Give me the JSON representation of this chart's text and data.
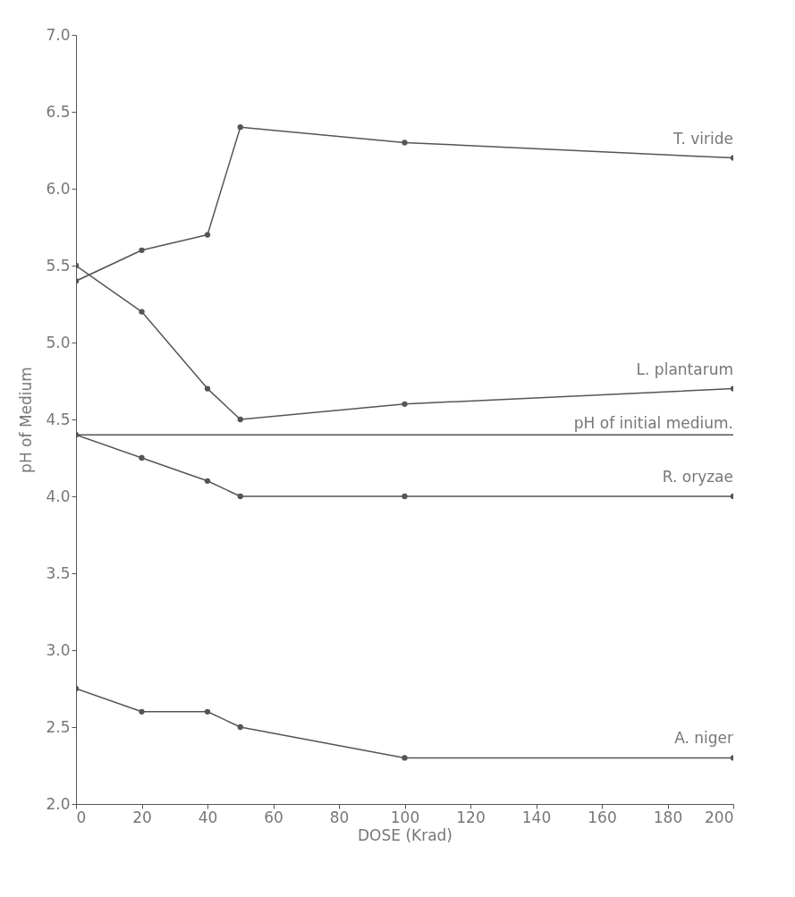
{
  "chart_data": {
    "type": "line",
    "xlabel": "DOSE (Krad)",
    "ylabel": "pH of Medium",
    "x": [
      0,
      20,
      40,
      50,
      100,
      200
    ],
    "series": [
      {
        "name": "T. viride",
        "color": "#555555",
        "values": [
          5.4,
          5.6,
          5.7,
          6.4,
          6.3,
          6.2
        ]
      },
      {
        "name": "L. plantarum",
        "color": "#555555",
        "values": [
          5.5,
          5.2,
          4.7,
          4.5,
          4.6,
          4.7
        ]
      },
      {
        "name": "R. oryzae",
        "color": "#555555",
        "values": [
          4.4,
          4.25,
          4.1,
          4.0,
          4.0,
          4.0
        ]
      },
      {
        "name": "A. niger",
        "color": "#555555",
        "values": [
          2.75,
          2.6,
          2.6,
          2.5,
          2.3,
          2.3
        ]
      }
    ],
    "ref_lines": [
      {
        "axis": "y",
        "value": 4.4,
        "label": "pH of initial medium.",
        "color": "#555555"
      }
    ],
    "xlim": [
      0,
      200
    ],
    "xticks": [
      0,
      20,
      40,
      60,
      80,
      100,
      120,
      140,
      160,
      180,
      200
    ],
    "ylim": [
      2.0,
      7.0
    ],
    "yticks": [
      {
        "value": 2,
        "label": "2.0"
      },
      {
        "value": 2.5,
        "label": "2.5"
      },
      {
        "value": 3,
        "label": "3.0"
      },
      {
        "value": 3.5,
        "label": "3.5"
      },
      {
        "value": 4,
        "label": "4.0"
      },
      {
        "value": 4.5,
        "label": "4.5"
      },
      {
        "value": 5,
        "label": "5.0"
      },
      {
        "value": 5.5,
        "label": "5.5"
      },
      {
        "value": 6,
        "label": "6.0"
      },
      {
        "value": 6.5,
        "label": "6.5"
      },
      {
        "value": 7,
        "label": "7.0"
      }
    ],
    "grid": false,
    "marker": "circle",
    "line_style": "solid"
  }
}
